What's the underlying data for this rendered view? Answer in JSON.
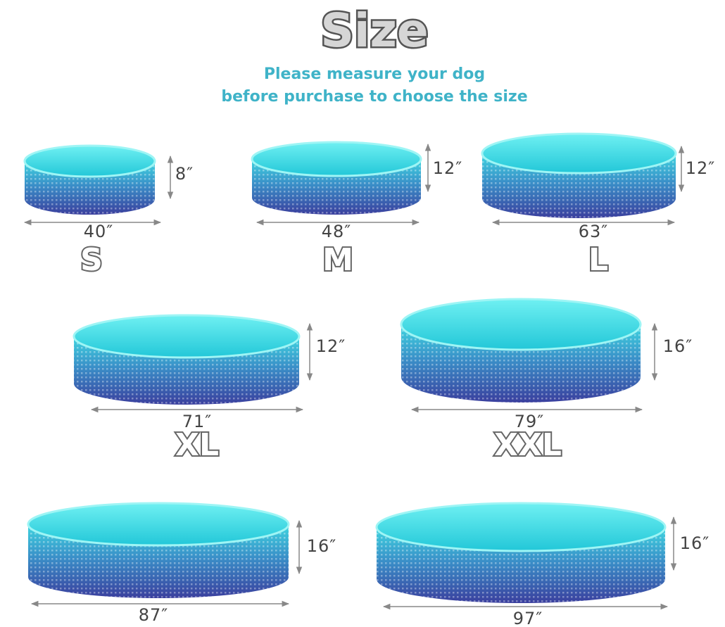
{
  "header": {
    "title": "Size",
    "subtitle": [
      "Please measure your dog",
      "before purchase to choose the size"
    ]
  },
  "sizes": [
    {
      "label": "S",
      "width": "40″",
      "height": "8″"
    },
    {
      "label": "M",
      "width": "48″",
      "height": "12″"
    },
    {
      "label": "L",
      "width": "63″",
      "height": "12″"
    },
    {
      "label": "XL",
      "width": "71″",
      "height": "12″"
    },
    {
      "label": "XXL",
      "width": "79″",
      "height": "16″"
    },
    {
      "width": "87″",
      "height": "16″"
    },
    {
      "width": "97″",
      "height": "16″"
    }
  ]
}
